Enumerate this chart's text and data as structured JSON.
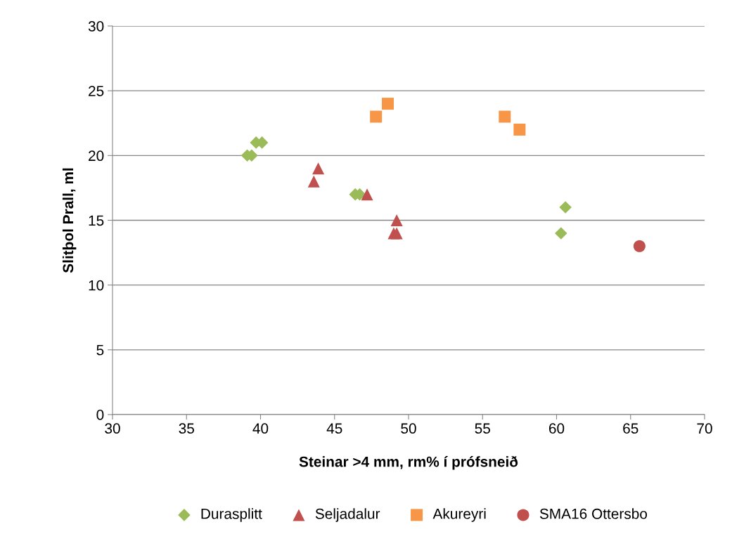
{
  "chart_data": {
    "type": "scatter",
    "xlabel": "Steinar >4 mm, rm% í prófsneið",
    "ylabel": "Slitþol Prall, ml",
    "xlim": [
      30,
      70
    ],
    "xticks": [
      30,
      35,
      40,
      45,
      50,
      55,
      60,
      65,
      70
    ],
    "ylim": [
      0,
      30
    ],
    "yticks": [
      0,
      5,
      10,
      15,
      20,
      25,
      30
    ],
    "grid": "y",
    "legend": "bottom",
    "series": [
      {
        "name": "Durasplitt",
        "color": "#9bbb59",
        "marker": "diamond",
        "x": [
          39.1,
          39.4,
          39.7,
          40.1,
          46.4,
          46.7,
          60.3,
          60.6
        ],
        "values": [
          20,
          20,
          21,
          21,
          17,
          17,
          14,
          16
        ]
      },
      {
        "name": "Seljadalur",
        "color": "#c0504d",
        "marker": "triangle",
        "x": [
          43.6,
          43.9,
          47.2,
          49.2,
          49.0,
          49.2
        ],
        "values": [
          18,
          19,
          17,
          15,
          14,
          14
        ]
      },
      {
        "name": "Akureyri",
        "color": "#f79646",
        "marker": "square",
        "x": [
          47.8,
          48.6,
          56.5,
          57.5
        ],
        "values": [
          23,
          24,
          23,
          22
        ]
      },
      {
        "name": "SMA16 Ottersbo",
        "color": "#c0504d",
        "marker": "circle",
        "x": [
          65.6
        ],
        "values": [
          13
        ]
      }
    ]
  }
}
